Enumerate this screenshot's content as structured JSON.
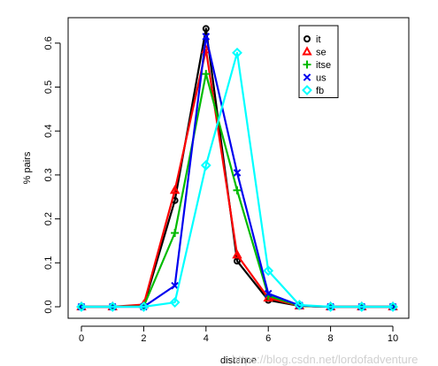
{
  "chart_data": {
    "type": "line",
    "xlabel": "distance",
    "ylabel": "% pairs",
    "xlim": [
      0,
      10
    ],
    "ylim": [
      0,
      0.65
    ],
    "x_ticks": [
      0,
      2,
      4,
      6,
      8,
      10
    ],
    "y_ticks": [
      0.0,
      0.1,
      0.2,
      0.3,
      0.4,
      0.5,
      0.6
    ],
    "legend_position": "top-right",
    "grid": false,
    "x": [
      0,
      1,
      2,
      3,
      4,
      5,
      6,
      7,
      8,
      9,
      10
    ],
    "series": [
      {
        "name": "it",
        "color": "#000000",
        "marker": "circle",
        "values": [
          0,
          0,
          0.002,
          0.242,
          0.633,
          0.104,
          0.015,
          0.002,
          0,
          0,
          0
        ]
      },
      {
        "name": "se",
        "color": "#ff0000",
        "marker": "triangle",
        "values": [
          0,
          0,
          0.005,
          0.265,
          0.585,
          0.118,
          0.02,
          0.002,
          0,
          0,
          0
        ]
      },
      {
        "name": "itse",
        "color": "#00bb00",
        "marker": "plus",
        "values": [
          0,
          0,
          0.001,
          0.168,
          0.53,
          0.265,
          0.025,
          0.002,
          0,
          0,
          0
        ]
      },
      {
        "name": "us",
        "color": "#0000ee",
        "marker": "cross",
        "values": [
          0,
          0,
          0,
          0.048,
          0.615,
          0.305,
          0.03,
          0.003,
          0,
          0,
          0
        ]
      },
      {
        "name": "fb",
        "color": "#00ffff",
        "marker": "diamond",
        "values": [
          0,
          0,
          0,
          0.01,
          0.322,
          0.578,
          0.082,
          0.004,
          0,
          0,
          0
        ]
      }
    ]
  },
  "watermark": "https://blog.csdn.net/lordofadventure"
}
